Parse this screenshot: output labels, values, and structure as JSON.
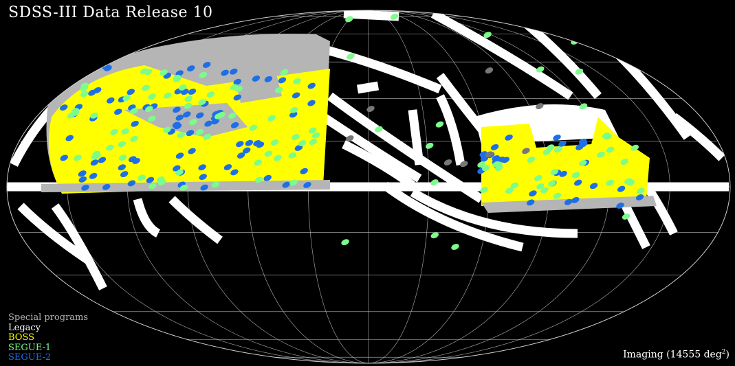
{
  "title": "SDSS-III Data Release 10",
  "legend": [
    {
      "label": "Special programs",
      "color": "#b5b5b5"
    },
    {
      "label": "Legacy",
      "color": "#ffffff"
    },
    {
      "label": "BOSS",
      "color": "#ffff00"
    },
    {
      "label": "SEGUE-1",
      "color": "#7cfc8a"
    },
    {
      "label": "SEGUE-2",
      "color": "#1e6fe6"
    }
  ],
  "imaging": {
    "prefix": "Imaging (14555 deg",
    "sup": "2",
    "suffix": ")"
  },
  "colors": {
    "background": "#000000",
    "grid": "#cfcfcf",
    "legacy": "#ffffff",
    "boss": "#ffff00",
    "segue1": "#7cfc8a",
    "segue2": "#1e6fe6",
    "special": "#b5b5b5",
    "special_dark": "#777777"
  }
}
